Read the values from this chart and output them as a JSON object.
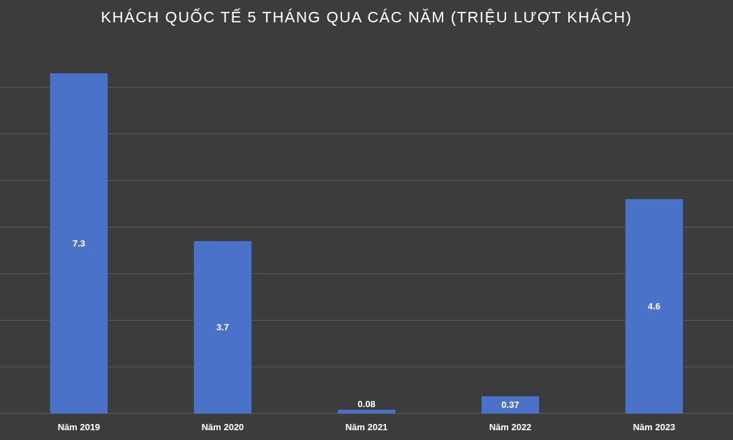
{
  "chart_data": {
    "type": "bar",
    "title": "KHÁCH QUỐC TẾ 5 THÁNG QUA CÁC NĂM (TRIỆU LƯỢT KHÁCH)",
    "categories": [
      "Năm 2019",
      "Năm 2020",
      "Năm 2021",
      "Năm 2022",
      "Năm 2023"
    ],
    "values": [
      7.3,
      3.7,
      0.08,
      0.37,
      4.6
    ],
    "color": "#4a72c8",
    "yticks": [
      {
        "value": 0,
        "label": null
      },
      {
        "value": 1,
        "label": null
      },
      {
        "value": 2,
        "label": null
      },
      {
        "value": 3,
        "label": null
      },
      {
        "value": 4,
        "label": null
      },
      {
        "value": 5,
        "label": null
      },
      {
        "value": 6,
        "label": null
      },
      {
        "value": 7,
        "label": null
      }
    ],
    "grid": "y",
    "tick_labels": "x",
    "data_labels": true
  }
}
